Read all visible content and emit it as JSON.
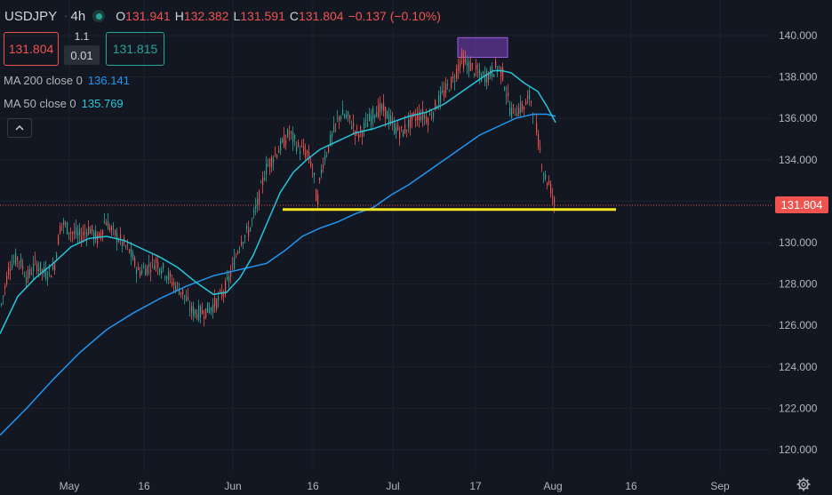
{
  "header": {
    "symbol": "USDJPY",
    "timeframe": "4h",
    "open_label": "O",
    "open": "131.941",
    "high_label": "H",
    "high": "132.382",
    "low_label": "L",
    "low": "131.591",
    "close_label": "C",
    "close": "131.804",
    "change": "−0.137 (−0.10%)"
  },
  "trade": {
    "sell_price": "131.804",
    "buy_price": "131.815",
    "spread_top": "1.1",
    "spread": "0.01"
  },
  "indicators": [
    {
      "name": "MA 200 close 0",
      "value": "136.141",
      "color": "#2196f3"
    },
    {
      "name": "MA 50 close 0",
      "value": "135.769",
      "color": "#26c6da"
    }
  ],
  "icons": {
    "live": "live-status-icon",
    "collapse": "chevron-up-icon",
    "settings": "gear-icon"
  },
  "colors": {
    "background": "#131722",
    "up": "#26a69a",
    "down": "#ef5350",
    "support_line": "#f5e623",
    "highlight_box": "#7b3fbf",
    "grid": "#1e222d"
  },
  "current_price_label": "131.804",
  "chart_data": {
    "type": "candlestick",
    "x_axis_labels": [
      "May",
      "16",
      "Jun",
      "16",
      "Jul",
      "17",
      "Aug",
      "16",
      "Sep"
    ],
    "y_axis_labels": [
      "140.000",
      "138.000",
      "136.000",
      "134.000",
      "132.000",
      "130.000",
      "128.000",
      "126.000",
      "124.000",
      "122.000",
      "120.000"
    ],
    "ylim": [
      119.4,
      141.3
    ],
    "grid": true,
    "current_price": 131.804,
    "support_level": 131.6,
    "resistance_zone": [
      138.95,
      139.9
    ],
    "price_path": [
      [
        0,
        126.8
      ],
      [
        10,
        128.9
      ],
      [
        20,
        129.3
      ],
      [
        30,
        128.3
      ],
      [
        40,
        129.0
      ],
      [
        50,
        128.5
      ],
      [
        60,
        128.7
      ],
      [
        68,
        131.0
      ],
      [
        80,
        130.5
      ],
      [
        90,
        130.3
      ],
      [
        100,
        130.7
      ],
      [
        110,
        130.1
      ],
      [
        118,
        131.1
      ],
      [
        125,
        130.6
      ],
      [
        135,
        130.1
      ],
      [
        145,
        129.6
      ],
      [
        155,
        128.6
      ],
      [
        165,
        128.8
      ],
      [
        175,
        129.1
      ],
      [
        185,
        128.6
      ],
      [
        195,
        128.0
      ],
      [
        205,
        127.6
      ],
      [
        215,
        126.7
      ],
      [
        225,
        126.6
      ],
      [
        235,
        126.8
      ],
      [
        245,
        127.2
      ],
      [
        255,
        128.0
      ],
      [
        262,
        128.9
      ],
      [
        270,
        130.1
      ],
      [
        280,
        130.6
      ],
      [
        290,
        132.0
      ],
      [
        298,
        133.5
      ],
      [
        306,
        134.1
      ],
      [
        315,
        134.6
      ],
      [
        325,
        135.3
      ],
      [
        335,
        134.6
      ],
      [
        345,
        134.3
      ],
      [
        352,
        133.5
      ],
      [
        356,
        131.8
      ],
      [
        362,
        133.8
      ],
      [
        372,
        135.0
      ],
      [
        382,
        136.2
      ],
      [
        392,
        136.0
      ],
      [
        402,
        135.2
      ],
      [
        412,
        135.7
      ],
      [
        422,
        136.4
      ],
      [
        432,
        136.4
      ],
      [
        442,
        135.6
      ],
      [
        452,
        135.3
      ],
      [
        462,
        135.9
      ],
      [
        472,
        136.2
      ],
      [
        482,
        136.0
      ],
      [
        492,
        136.8
      ],
      [
        500,
        137.3
      ],
      [
        510,
        137.9
      ],
      [
        518,
        138.9
      ],
      [
        524,
        138.6
      ],
      [
        530,
        138.5
      ],
      [
        540,
        138.0
      ],
      [
        550,
        138.1
      ],
      [
        558,
        138.5
      ],
      [
        564,
        138.3
      ],
      [
        570,
        137.1
      ],
      [
        574,
        136.3
      ],
      [
        580,
        136.4
      ],
      [
        590,
        136.6
      ],
      [
        596,
        137.1
      ],
      [
        600,
        136.2
      ],
      [
        606,
        134.7
      ],
      [
        612,
        133.2
      ],
      [
        618,
        132.8
      ],
      [
        624,
        131.8
      ]
    ],
    "ma200_path": [
      [
        0,
        120.7
      ],
      [
        30,
        122.0
      ],
      [
        60,
        123.4
      ],
      [
        90,
        124.7
      ],
      [
        120,
        125.8
      ],
      [
        150,
        126.6
      ],
      [
        180,
        127.3
      ],
      [
        210,
        127.9
      ],
      [
        240,
        128.4
      ],
      [
        270,
        128.7
      ],
      [
        300,
        129.0
      ],
      [
        320,
        129.6
      ],
      [
        340,
        130.3
      ],
      [
        360,
        130.7
      ],
      [
        380,
        131.0
      ],
      [
        400,
        131.4
      ],
      [
        420,
        131.7
      ],
      [
        440,
        132.3
      ],
      [
        460,
        132.8
      ],
      [
        480,
        133.4
      ],
      [
        500,
        134.0
      ],
      [
        520,
        134.6
      ],
      [
        540,
        135.2
      ],
      [
        560,
        135.6
      ],
      [
        580,
        136.0
      ],
      [
        600,
        136.2
      ],
      [
        615,
        136.2
      ],
      [
        625,
        136.1
      ]
    ],
    "ma50_path": [
      [
        0,
        125.6
      ],
      [
        20,
        127.4
      ],
      [
        40,
        128.3
      ],
      [
        60,
        129.0
      ],
      [
        80,
        129.8
      ],
      [
        100,
        130.2
      ],
      [
        120,
        130.3
      ],
      [
        140,
        130.1
      ],
      [
        160,
        129.7
      ],
      [
        180,
        129.3
      ],
      [
        200,
        128.8
      ],
      [
        220,
        128.1
      ],
      [
        240,
        127.5
      ],
      [
        255,
        127.6
      ],
      [
        270,
        128.3
      ],
      [
        285,
        129.4
      ],
      [
        300,
        130.9
      ],
      [
        315,
        132.4
      ],
      [
        330,
        133.4
      ],
      [
        345,
        134.0
      ],
      [
        360,
        134.5
      ],
      [
        380,
        134.9
      ],
      [
        400,
        135.3
      ],
      [
        420,
        135.5
      ],
      [
        440,
        135.8
      ],
      [
        460,
        136.1
      ],
      [
        480,
        136.3
      ],
      [
        500,
        136.7
      ],
      [
        520,
        137.3
      ],
      [
        540,
        137.9
      ],
      [
        555,
        138.3
      ],
      [
        565,
        138.3
      ],
      [
        575,
        138.2
      ],
      [
        590,
        137.7
      ],
      [
        605,
        137.3
      ],
      [
        615,
        136.6
      ],
      [
        625,
        135.8
      ]
    ]
  }
}
